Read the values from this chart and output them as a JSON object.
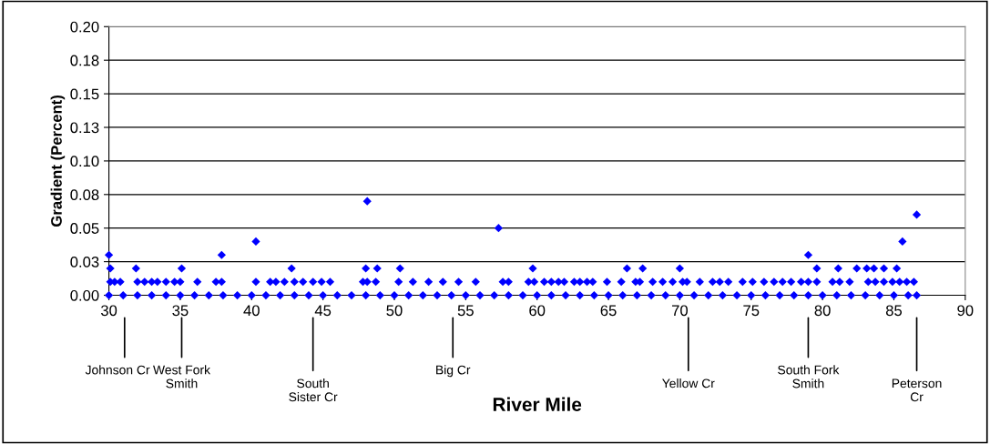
{
  "chart_data": {
    "type": "scatter",
    "xlabel": "River Mile",
    "ylabel": "Gradient (Percent)",
    "xlim": [
      30,
      90
    ],
    "xticks": [
      30,
      35,
      40,
      45,
      50,
      55,
      60,
      65,
      70,
      75,
      80,
      85,
      90
    ],
    "ylim": [
      0,
      0.2
    ],
    "yticks": [
      {
        "value": 0,
        "label": "0.00"
      },
      {
        "value": 0.025,
        "label": "0.03"
      },
      {
        "value": 0.05,
        "label": "0.05"
      },
      {
        "value": 0.075,
        "label": "0.08"
      },
      {
        "value": 0.1,
        "label": "0.10"
      },
      {
        "value": 0.125,
        "label": "0.13"
      },
      {
        "value": 0.15,
        "label": "0.15"
      },
      {
        "value": 0.175,
        "label": "0.18"
      },
      {
        "value": 0.2,
        "label": "0.20"
      }
    ],
    "grid": "y",
    "marker": "diamond",
    "legend": false,
    "series": [
      {
        "color": "#0000ff",
        "x": [
          30,
          31,
          32,
          33,
          34,
          35,
          36,
          37,
          38,
          39,
          40,
          41,
          42,
          43,
          44,
          45,
          46,
          47,
          48,
          49,
          50,
          51,
          52,
          53,
          54,
          55,
          56,
          57,
          58,
          59,
          60,
          61,
          62,
          63,
          64,
          65,
          66,
          67,
          68,
          69,
          70,
          71,
          72,
          73,
          74,
          75,
          76,
          77,
          78,
          79,
          80,
          81,
          82,
          83,
          84,
          85,
          86,
          86.6,
          30.1,
          30.4,
          30.8,
          32.0,
          32.5,
          33.0,
          33.4,
          34.0,
          34.6,
          35.0,
          36.2,
          37.5,
          37.9,
          40.3,
          41.3,
          41.7,
          42.3,
          43.0,
          43.6,
          44.3,
          44.9,
          45.5,
          47.8,
          48.1,
          48.7,
          50.3,
          51.3,
          52.4,
          53.4,
          54.5,
          55.7,
          57.6,
          58.0,
          59.4,
          59.8,
          60.5,
          61.0,
          61.5,
          61.9,
          62.6,
          63.0,
          63.5,
          63.9,
          64.9,
          65.9,
          66.9,
          67.2,
          68.1,
          68.8,
          69.5,
          70.2,
          70.5,
          71.4,
          72.3,
          72.8,
          73.4,
          74.4,
          75.1,
          75.9,
          76.6,
          77.2,
          77.8,
          78.5,
          79.0,
          79.6,
          80.7,
          81.2,
          81.9,
          83.2,
          83.7,
          84.3,
          84.9,
          85.4,
          85.9,
          86.4,
          30.1,
          31.9,
          35.1,
          42.8,
          48.0,
          48.8,
          50.4,
          59.7,
          66.3,
          67.4,
          70.0,
          79.6,
          81.1,
          82.4,
          83.1,
          83.6,
          84.3,
          85.2,
          30.0,
          37.9,
          79.0,
          40.3,
          85.6,
          57.3,
          86.6,
          48.1
        ],
        "values": [
          0,
          0,
          0,
          0,
          0,
          0,
          0,
          0,
          0,
          0,
          0,
          0,
          0,
          0,
          0,
          0,
          0,
          0,
          0,
          0,
          0,
          0,
          0,
          0,
          0,
          0,
          0,
          0,
          0,
          0,
          0,
          0,
          0,
          0,
          0,
          0,
          0,
          0,
          0,
          0,
          0,
          0,
          0,
          0,
          0,
          0,
          0,
          0,
          0,
          0,
          0,
          0,
          0,
          0,
          0,
          0,
          0,
          0,
          0.01,
          0.01,
          0.01,
          0.01,
          0.01,
          0.01,
          0.01,
          0.01,
          0.01,
          0.01,
          0.01,
          0.01,
          0.01,
          0.01,
          0.01,
          0.01,
          0.01,
          0.01,
          0.01,
          0.01,
          0.01,
          0.01,
          0.01,
          0.01,
          0.01,
          0.01,
          0.01,
          0.01,
          0.01,
          0.01,
          0.01,
          0.01,
          0.01,
          0.01,
          0.01,
          0.01,
          0.01,
          0.01,
          0.01,
          0.01,
          0.01,
          0.01,
          0.01,
          0.01,
          0.01,
          0.01,
          0.01,
          0.01,
          0.01,
          0.01,
          0.01,
          0.01,
          0.01,
          0.01,
          0.01,
          0.01,
          0.01,
          0.01,
          0.01,
          0.01,
          0.01,
          0.01,
          0.01,
          0.01,
          0.01,
          0.01,
          0.01,
          0.01,
          0.01,
          0.01,
          0.01,
          0.01,
          0.01,
          0.01,
          0.01,
          0.02,
          0.02,
          0.02,
          0.02,
          0.02,
          0.02,
          0.02,
          0.02,
          0.02,
          0.02,
          0.02,
          0.02,
          0.02,
          0.02,
          0.02,
          0.02,
          0.02,
          0.02,
          0.03,
          0.03,
          0.03,
          0.04,
          0.04,
          0.05,
          0.06,
          0.07
        ]
      }
    ],
    "annotations": [
      {
        "text": "Johnson Cr",
        "x": 31.1
      },
      {
        "text": "West Fork\nSmith",
        "x": 35.1
      },
      {
        "text": "South\nSister Cr",
        "x": 44.3
      },
      {
        "text": "Big Cr",
        "x": 54.1
      },
      {
        "text": "Yellow Cr",
        "x": 70.6
      },
      {
        "text": "South Fork\nSmith",
        "x": 79.0
      },
      {
        "text": "Peterson\nCr",
        "x": 86.6
      }
    ]
  }
}
